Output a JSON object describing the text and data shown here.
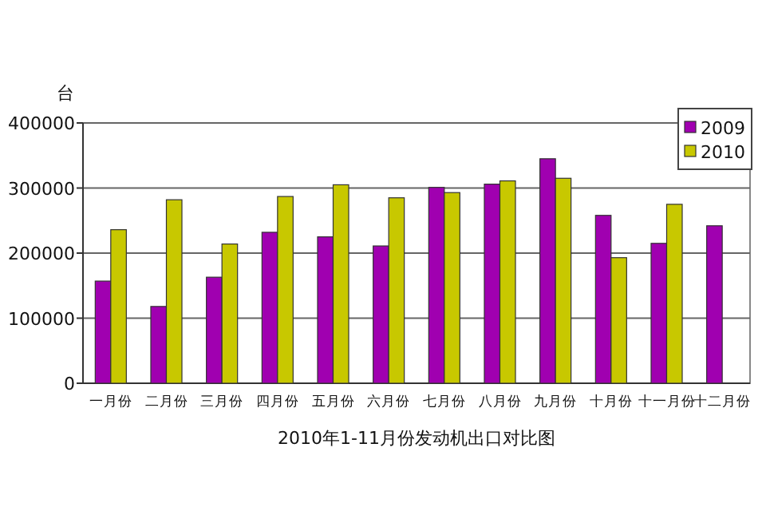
{
  "chart_data": {
    "type": "bar",
    "title": "2010年1-11月份发动机出口对比图",
    "ylabel": "台",
    "categories": [
      "一月份",
      "二月份",
      "三月份",
      "四月份",
      "五月份",
      "六月份",
      "七月份",
      "八月份",
      "九月份",
      "十月份",
      "十一月份",
      "十二月份"
    ],
    "series": [
      {
        "name": "2009",
        "color": "#a000b0",
        "values": [
          157000,
          118000,
          163000,
          232000,
          225000,
          211000,
          301000,
          306000,
          345000,
          258000,
          215000,
          242000
        ]
      },
      {
        "name": "2010",
        "color": "#c8c800",
        "values": [
          236000,
          282000,
          214000,
          287000,
          305000,
          285000,
          293000,
          311000,
          315000,
          193000,
          275000,
          null
        ]
      }
    ],
    "ylim": [
      0,
      400000
    ],
    "yticks": [
      0,
      100000,
      200000,
      300000,
      400000
    ],
    "grid": "y",
    "legend": "top right"
  }
}
